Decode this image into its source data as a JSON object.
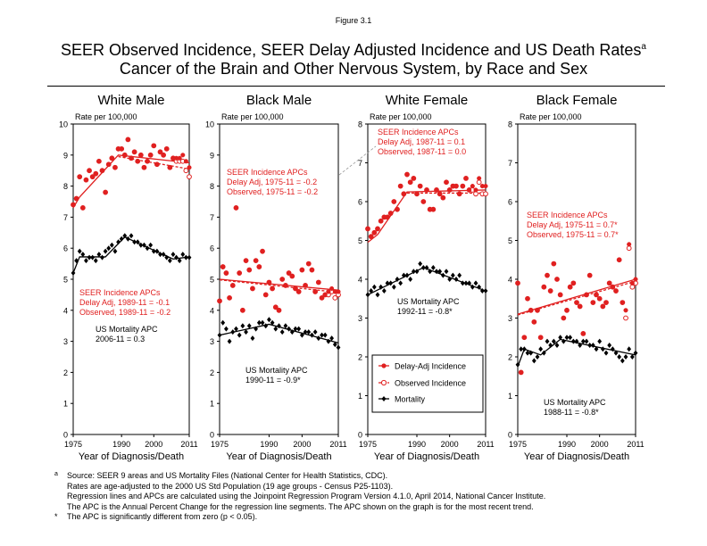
{
  "figure_label": "Figure 3.1",
  "title_line1": "SEER Observed Incidence, SEER Delay Adjusted Incidence and US Death Rates",
  "title_marker": "a",
  "title_line2": "Cancer of the Brain and Other Nervous System, by Race and Sex",
  "y_axis_label": "Rate per 100,000",
  "x_axis_label": "Year of Diagnosis/Death",
  "legend": {
    "delay": "Delay-Adj Incidence",
    "observed": "Observed Incidence",
    "mortality": "Mortality"
  },
  "colors": {
    "incidence": "#e02020",
    "mortality": "#000000"
  },
  "footnotes": [
    {
      "marker": "a",
      "text": "Source: SEER 9 areas and US Mortality Files (National Center for Health Statistics, CDC)."
    },
    {
      "marker": "",
      "text": "Rates are age-adjusted to the 2000 US Std Population (19 age groups - Census P25-1103)."
    },
    {
      "marker": "",
      "text": "Regression lines and APCs are calculated using the Joinpoint Regression Program Version 4.1.0, April 2014, National Cancer Institute."
    },
    {
      "marker": "",
      "text": "The APC is the Annual Percent Change for the regression line segments. The APC shown on the graph is for the most recent trend."
    },
    {
      "marker": "*",
      "text": "The APC is significantly different from zero (p < 0.05)."
    }
  ],
  "chart_data": [
    {
      "type": "scatter",
      "title": "White Male",
      "xlabel": "Year of Diagnosis/Death",
      "ylabel": "Rate per 100,000",
      "xlim": [
        1975,
        2011
      ],
      "ylim": [
        0,
        10
      ],
      "x_ticks": [
        1975,
        1990,
        2000,
        2011
      ],
      "y_ticks": [
        0,
        1,
        2,
        3,
        4,
        5,
        6,
        7,
        8,
        9,
        10
      ],
      "annotations": [
        [
          "SEER Incidence APCs",
          "Delay Adj, 1989-11 = -0.1",
          "Observed, 1989-11 = -0.2"
        ],
        [
          "US Mortality APC",
          "2006-11 = 0.3"
        ]
      ],
      "series": [
        {
          "name": "Delay-Adj Incidence",
          "marker": "filled",
          "values": [
            7.4,
            7.6,
            8.3,
            7.3,
            8.2,
            8.5,
            8.3,
            8.4,
            8.8,
            8.5,
            7.8,
            8.7,
            8.9,
            8.6,
            9.2,
            9.2,
            9.0,
            9.5,
            8.9,
            9.1,
            8.8,
            9.0,
            8.6,
            8.8,
            9.0,
            9.3,
            8.7,
            9.1,
            9.0,
            9.2,
            8.6,
            8.9,
            8.9,
            8.9,
            9.0,
            8.8,
            8.6
          ]
        },
        {
          "name": "Observed Incidence",
          "marker": "open",
          "values": [
            7.4,
            7.6,
            8.3,
            7.3,
            8.2,
            8.5,
            8.3,
            8.4,
            8.8,
            8.5,
            7.8,
            8.7,
            8.9,
            8.6,
            9.2,
            9.2,
            9.0,
            9.5,
            8.9,
            9.1,
            8.8,
            9.0,
            8.6,
            8.8,
            9.0,
            9.3,
            8.7,
            9.1,
            9.0,
            9.2,
            8.6,
            8.9,
            8.8,
            8.8,
            8.8,
            8.5,
            8.3
          ]
        },
        {
          "name": "Mortality",
          "marker": "diamond",
          "values": [
            5.2,
            5.6,
            5.9,
            5.8,
            5.6,
            5.7,
            5.7,
            5.6,
            5.8,
            5.7,
            5.9,
            6.0,
            6.1,
            5.9,
            6.2,
            6.3,
            6.4,
            6.3,
            6.4,
            6.2,
            6.2,
            6.1,
            6.1,
            6.0,
            6.1,
            5.9,
            5.9,
            5.8,
            5.8,
            5.7,
            5.6,
            5.8,
            5.7,
            5.6,
            5.8,
            5.7,
            5.7
          ]
        }
      ],
      "trend_delay": [
        [
          1975,
          7.3
        ],
        [
          1977,
          7.65
        ],
        [
          1989,
          9.0
        ],
        [
          2011,
          8.75
        ]
      ],
      "trend_observed": [
        [
          1989,
          8.95
        ],
        [
          2011,
          8.55
        ]
      ],
      "trend_mortality": [
        [
          1975,
          5.2
        ],
        [
          1977,
          5.72
        ],
        [
          1985,
          5.72
        ],
        [
          1991,
          6.36
        ],
        [
          2006,
          5.65
        ],
        [
          2011,
          5.72
        ]
      ]
    },
    {
      "type": "scatter",
      "title": "Black Male",
      "xlabel": "Year of Diagnosis/Death",
      "ylabel": "Rate per 100,000",
      "xlim": [
        1975,
        2011
      ],
      "ylim": [
        0,
        10
      ],
      "x_ticks": [
        1975,
        1990,
        2000,
        2011
      ],
      "y_ticks": [
        0,
        1,
        2,
        3,
        4,
        5,
        6,
        7,
        8,
        9,
        10
      ],
      "annotations": [
        [
          "SEER Incidence APCs",
          "Delay Adj, 1975-11 = -0.2",
          "Observed, 1975-11 = -0.2"
        ],
        [
          "US Mortality APC",
          "1990-11 = -0.9*"
        ]
      ],
      "series": [
        {
          "name": "Delay-Adj Incidence",
          "marker": "filled",
          "values": [
            4.3,
            5.4,
            5.2,
            4.4,
            4.8,
            7.3,
            5.2,
            4.0,
            5.6,
            5.3,
            4.7,
            5.6,
            5.4,
            5.9,
            4.5,
            4.9,
            4.7,
            4.1,
            4.0,
            5.0,
            4.8,
            5.2,
            5.1,
            4.7,
            4.6,
            5.3,
            4.8,
            5.5,
            5.3,
            4.6,
            4.9,
            4.4,
            4.5,
            4.6,
            4.7,
            4.6,
            4.6
          ]
        },
        {
          "name": "Observed Incidence",
          "marker": "open",
          "values": [
            4.3,
            5.4,
            5.2,
            4.4,
            4.8,
            7.3,
            5.2,
            4.0,
            5.6,
            5.3,
            4.7,
            5.6,
            5.4,
            5.9,
            4.5,
            4.9,
            4.7,
            4.1,
            4.0,
            5.0,
            4.8,
            5.2,
            5.1,
            4.7,
            4.6,
            5.3,
            4.8,
            5.5,
            5.3,
            4.6,
            4.9,
            4.4,
            4.5,
            4.5,
            4.6,
            4.4,
            4.5
          ]
        },
        {
          "name": "Mortality",
          "marker": "diamond",
          "values": [
            3.2,
            3.6,
            3.4,
            3.0,
            3.3,
            3.4,
            3.2,
            3.5,
            3.3,
            3.5,
            3.1,
            3.4,
            3.6,
            3.6,
            3.5,
            3.7,
            3.6,
            3.4,
            3.5,
            3.3,
            3.5,
            3.4,
            3.3,
            3.4,
            3.4,
            3.2,
            3.3,
            3.3,
            3.2,
            3.3,
            3.1,
            3.2,
            3.2,
            3.0,
            3.1,
            2.9,
            2.8
          ]
        }
      ],
      "trend_delay": [
        [
          1975,
          5.0
        ],
        [
          2011,
          4.65
        ]
      ],
      "trend_observed": [
        [
          1975,
          4.98
        ],
        [
          2011,
          4.58
        ]
      ],
      "trend_mortality": [
        [
          1975,
          3.2
        ],
        [
          1990,
          3.55
        ],
        [
          2011,
          2.95
        ]
      ]
    },
    {
      "type": "scatter",
      "title": "White Female",
      "xlabel": "Year of Diagnosis/Death",
      "ylabel": "Rate per 100,000",
      "xlim": [
        1975,
        2011
      ],
      "ylim": [
        0,
        8
      ],
      "x_ticks": [
        1975,
        1990,
        2000,
        2011
      ],
      "y_ticks": [
        0,
        1,
        2,
        3,
        4,
        5,
        6,
        7,
        8
      ],
      "annotations": [
        [
          "SEER Incidence APCs",
          "Delay Adj, 1987-11 = 0.1",
          "Observed, 1987-11 = 0.0"
        ],
        [
          "US Mortality APC",
          "1992-11 = -0.8*"
        ]
      ],
      "series": [
        {
          "name": "Delay-Adj Incidence",
          "marker": "filled",
          "values": [
            5.3,
            5.1,
            5.2,
            5.3,
            5.5,
            5.6,
            5.6,
            5.7,
            6.0,
            5.8,
            6.4,
            6.2,
            6.7,
            6.5,
            6.6,
            6.2,
            6.4,
            6.0,
            6.3,
            5.8,
            5.8,
            6.3,
            6.2,
            6.1,
            6.5,
            6.3,
            6.4,
            6.4,
            6.2,
            6.4,
            6.6,
            6.3,
            6.4,
            6.3,
            6.6,
            6.4,
            6.4
          ]
        },
        {
          "name": "Observed Incidence",
          "marker": "open",
          "values": [
            5.3,
            5.1,
            5.2,
            5.3,
            5.5,
            5.6,
            5.6,
            5.7,
            6.0,
            5.8,
            6.4,
            6.2,
            6.7,
            6.5,
            6.6,
            6.2,
            6.4,
            6.0,
            6.3,
            5.8,
            5.8,
            6.3,
            6.2,
            6.1,
            6.5,
            6.3,
            6.4,
            6.4,
            6.2,
            6.4,
            6.6,
            6.3,
            6.3,
            6.2,
            6.5,
            6.2,
            6.2
          ]
        },
        {
          "name": "Mortality",
          "marker": "diamond",
          "values": [
            3.6,
            3.7,
            3.8,
            3.6,
            3.8,
            3.7,
            3.9,
            3.9,
            3.8,
            4.0,
            3.9,
            4.1,
            4.1,
            4.0,
            4.2,
            4.2,
            4.4,
            4.3,
            4.3,
            4.2,
            4.3,
            4.2,
            4.2,
            4.1,
            4.2,
            4.0,
            4.1,
            4.0,
            4.1,
            3.9,
            3.9,
            3.9,
            3.8,
            3.9,
            3.8,
            3.7,
            3.7
          ]
        }
      ],
      "trend_delay": [
        [
          1975,
          4.95
        ],
        [
          1978,
          5.15
        ],
        [
          1987,
          6.25
        ],
        [
          2011,
          6.3
        ]
      ],
      "trend_observed": [
        [
          1987,
          6.22
        ],
        [
          2011,
          6.22
        ]
      ],
      "trend_mortality": [
        [
          1975,
          3.6
        ],
        [
          1992,
          4.3
        ],
        [
          2011,
          3.7
        ]
      ]
    },
    {
      "type": "scatter",
      "title": "Black Female",
      "xlabel": "Year of Diagnosis/Death",
      "ylabel": "Rate per 100,000",
      "xlim": [
        1975,
        2011
      ],
      "ylim": [
        0,
        8
      ],
      "x_ticks": [
        1975,
        1990,
        2000,
        2011
      ],
      "y_ticks": [
        0,
        1,
        2,
        3,
        4,
        5,
        6,
        7,
        8
      ],
      "annotations": [
        [
          "SEER Incidence APCs",
          "Delay Adj, 1975-11 = 0.7*",
          "Observed, 1975-11 = 0.7*"
        ],
        [
          "US Mortality APC",
          "1988-11 = -0.8*"
        ]
      ],
      "series": [
        {
          "name": "Delay-Adj Incidence",
          "marker": "filled",
          "values": [
            3.9,
            1.6,
            2.5,
            3.5,
            3.2,
            2.9,
            3.2,
            2.5,
            3.8,
            4.1,
            3.7,
            4.4,
            4.0,
            3.6,
            3.0,
            3.2,
            3.8,
            3.9,
            3.4,
            3.3,
            2.6,
            3.6,
            4.1,
            3.4,
            3.6,
            3.5,
            3.3,
            3.4,
            3.9,
            3.8,
            3.7,
            4.5,
            3.4,
            3.2,
            4.9,
            3.9,
            4.0
          ]
        },
        {
          "name": "Observed Incidence",
          "marker": "open",
          "values": [
            3.9,
            1.6,
            2.5,
            3.5,
            3.2,
            2.9,
            3.2,
            2.5,
            3.8,
            4.1,
            3.7,
            4.4,
            4.0,
            3.6,
            3.0,
            3.2,
            3.8,
            3.9,
            3.4,
            3.3,
            2.6,
            3.6,
            4.1,
            3.4,
            3.6,
            3.5,
            3.3,
            3.4,
            3.9,
            3.8,
            3.7,
            4.5,
            3.4,
            3.0,
            4.8,
            3.8,
            3.9
          ]
        },
        {
          "name": "Mortality",
          "marker": "diamond",
          "values": [
            1.8,
            2.2,
            2.2,
            2.1,
            2.1,
            1.9,
            2.0,
            2.2,
            2.1,
            2.4,
            2.3,
            2.4,
            2.3,
            2.5,
            2.4,
            2.5,
            2.5,
            2.4,
            2.4,
            2.3,
            2.4,
            2.4,
            2.3,
            2.3,
            2.2,
            2.4,
            2.2,
            2.1,
            2.3,
            2.2,
            2.1,
            2.0,
            1.9,
            2.0,
            2.2,
            2.0,
            2.1
          ]
        }
      ],
      "trend_delay": [
        [
          1975,
          3.1
        ],
        [
          2011,
          4.0
        ]
      ],
      "trend_observed": [
        [
          1975,
          3.08
        ],
        [
          2011,
          3.95
        ]
      ],
      "trend_mortality": [
        [
          1975,
          1.75
        ],
        [
          1977,
          2.2
        ],
        [
          1982,
          2.05
        ],
        [
          1988,
          2.45
        ],
        [
          2011,
          2.05
        ]
      ]
    }
  ]
}
